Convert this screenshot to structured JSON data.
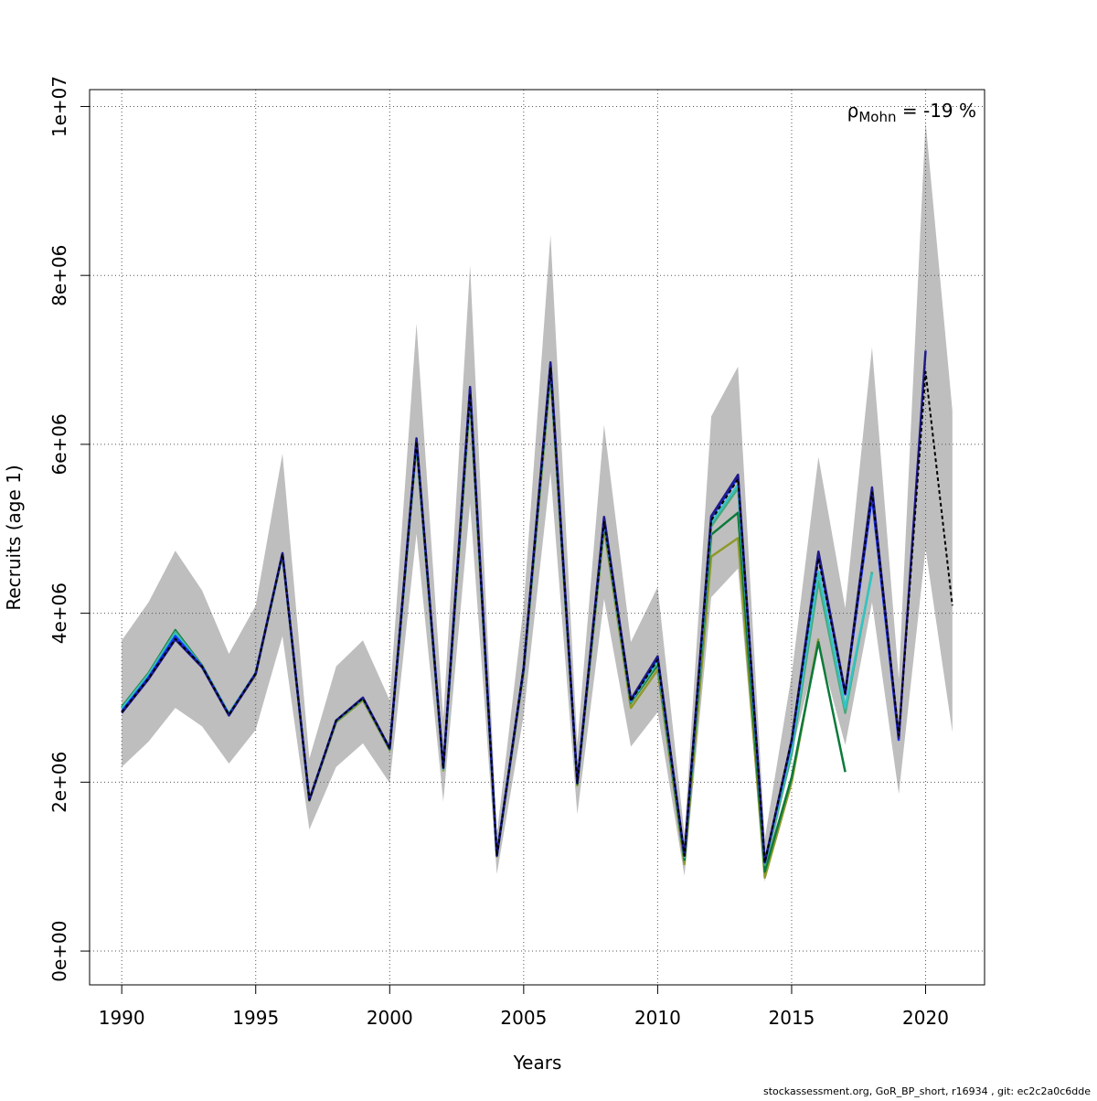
{
  "chart_data": {
    "type": "line",
    "title": "",
    "xlabel": "Years",
    "ylabel": "Recruits (age 1)",
    "xlim": [
      1988.8,
      2022.2
    ],
    "ylim": [
      -400000,
      10200000
    ],
    "x_ticks": [
      1990,
      1995,
      2000,
      2005,
      2010,
      2015,
      2020
    ],
    "x_tick_labels": [
      "1990",
      "1995",
      "2000",
      "2005",
      "2010",
      "2015",
      "2020"
    ],
    "y_ticks": [
      0,
      2000000,
      4000000,
      6000000,
      8000000,
      10000000
    ],
    "y_tick_labels": [
      "0e+00",
      "2e+06",
      "4e+06",
      "6e+06",
      "8e+06",
      "1e+07"
    ],
    "grid": true,
    "annotation": {
      "symbol": "ρ",
      "subscript": "Mohn",
      "text": " = -19 %"
    },
    "footer": "stockassessment.org, GoR_BP_short, r16934 , git: ec2c2a0c6dde",
    "confidence_band": {
      "color": "#bebebe",
      "x": [
        1990,
        1991,
        1992,
        1993,
        1994,
        1995,
        1996,
        1997,
        1998,
        1999,
        2000,
        2001,
        2002,
        2003,
        2004,
        2005,
        2006,
        2007,
        2008,
        2009,
        2010,
        2011,
        2012,
        2013,
        2014,
        2015,
        2016,
        2017,
        2018,
        2019,
        2020,
        2021
      ],
      "upper": [
        3680000,
        4130000,
        4740000,
        4270000,
        3520000,
        4090000,
        5890000,
        2280000,
        3370000,
        3680000,
        2970000,
        7430000,
        2750000,
        8120000,
        1380000,
        4080000,
        8480000,
        2450000,
        6230000,
        3660000,
        4310000,
        1380000,
        6330000,
        6920000,
        1330000,
        3270000,
        5850000,
        4060000,
        7150000,
        3220000,
        9820000,
        6400000
      ],
      "lower": [
        2180000,
        2480000,
        2880000,
        2660000,
        2220000,
        2620000,
        3730000,
        1440000,
        2180000,
        2460000,
        1990000,
        4940000,
        1770000,
        5300000,
        910000,
        2790000,
        5670000,
        1620000,
        4170000,
        2420000,
        2830000,
        890000,
        4190000,
        4530000,
        820000,
        2350000,
        3620000,
        2440000,
        4130000,
        1860000,
        4760000,
        2590000
      ]
    },
    "series": [
      {
        "color": "#000000",
        "dashed": true,
        "x": [
          1990,
          1991,
          1992,
          1993,
          1994,
          1995,
          1996,
          1997,
          1998,
          1999,
          2000,
          2001,
          2002,
          2003,
          2004,
          2005,
          2006,
          2007,
          2008,
          2009,
          2010,
          2011,
          2012,
          2013,
          2014,
          2015,
          2016,
          2017,
          2018,
          2019,
          2020,
          2021
        ],
        "values": [
          2830000,
          3230000,
          3700000,
          3370000,
          2800000,
          3290000,
          4700000,
          1790000,
          2730000,
          2990000,
          2400000,
          6030000,
          2160000,
          6600000,
          1130000,
          3350000,
          6900000,
          1990000,
          5080000,
          2960000,
          3450000,
          1130000,
          5100000,
          5590000,
          1050000,
          2500000,
          4650000,
          3050000,
          5430000,
          2550000,
          6860000,
          4090000
        ]
      },
      {
        "color": "#1f1a8a",
        "x": [
          1990,
          1991,
          1992,
          1993,
          1994,
          1995,
          1996,
          1997,
          1998,
          1999,
          2000,
          2001,
          2002,
          2003,
          2004,
          2005,
          2006,
          2007,
          2008,
          2009,
          2010,
          2011,
          2012,
          2013,
          2014,
          2015,
          2016,
          2017,
          2018,
          2019,
          2020
        ],
        "values": [
          2820000,
          3220000,
          3690000,
          3360000,
          2790000,
          3280000,
          4710000,
          1790000,
          2730000,
          3000000,
          2400000,
          6070000,
          2170000,
          6680000,
          1130000,
          3350000,
          6970000,
          1990000,
          5140000,
          2980000,
          3490000,
          1130000,
          5150000,
          5640000,
          1050000,
          2500000,
          4730000,
          3060000,
          5490000,
          2520000,
          7110000
        ]
      },
      {
        "color": "#1535ff",
        "x": [
          1990,
          1991,
          1992,
          1993,
          1994,
          1995,
          1996,
          1997,
          1998,
          1999,
          2000,
          2001,
          2002,
          2003,
          2004,
          2005,
          2006,
          2007,
          2008,
          2009,
          2010,
          2011,
          2012,
          2013,
          2014,
          2015,
          2016,
          2017,
          2018,
          2019
        ],
        "values": [
          2840000,
          3240000,
          3730000,
          3370000,
          2800000,
          3290000,
          4710000,
          1790000,
          2730000,
          3000000,
          2400000,
          6050000,
          2170000,
          6660000,
          1130000,
          3350000,
          6950000,
          1990000,
          5130000,
          2970000,
          3470000,
          1130000,
          5130000,
          5610000,
          1050000,
          2480000,
          4690000,
          3040000,
          5380000,
          2490000
        ]
      },
      {
        "color": "#33c4c4",
        "x": [
          1990,
          1991,
          1992,
          1993,
          1994,
          1995,
          1996,
          1997,
          1998,
          1999,
          2000,
          2001,
          2002,
          2003,
          2004,
          2005,
          2006,
          2007,
          2008,
          2009,
          2010,
          2011,
          2012,
          2013,
          2014,
          2015,
          2016,
          2017,
          2018
        ],
        "values": [
          2870000,
          3270000,
          3760000,
          3370000,
          2810000,
          3290000,
          4700000,
          1790000,
          2730000,
          2990000,
          2400000,
          6030000,
          2160000,
          6620000,
          1130000,
          3340000,
          6910000,
          1990000,
          5100000,
          2960000,
          3440000,
          1120000,
          5070000,
          5520000,
          1040000,
          2400000,
          4490000,
          2880000,
          4470000
        ]
      },
      {
        "color": "#4aa87a",
        "x": [
          1990,
          1991,
          1992,
          1993,
          1994,
          1995,
          1996,
          1997,
          1998,
          1999,
          2000,
          2001,
          2002,
          2003,
          2004,
          2005,
          2006,
          2007,
          2008,
          2009,
          2010,
          2011,
          2012,
          2013,
          2014,
          2015,
          2016,
          2017,
          2018
        ],
        "values": [
          2880000,
          3280000,
          3780000,
          3370000,
          2810000,
          3290000,
          4700000,
          1790000,
          2720000,
          2990000,
          2400000,
          6020000,
          2160000,
          6600000,
          1130000,
          3340000,
          6890000,
          1990000,
          5080000,
          2950000,
          3420000,
          1110000,
          5030000,
          5480000,
          1020000,
          2330000,
          4380000,
          2820000,
          4490000
        ]
      },
      {
        "color": "#0b7a3a",
        "x": [
          1990,
          1991,
          1992,
          1993,
          1994,
          1995,
          1996,
          1997,
          1998,
          1999,
          2000,
          2001,
          2002,
          2003,
          2004,
          2005,
          2006,
          2007,
          2008,
          2009,
          2010,
          2011,
          2012,
          2013,
          2014,
          2015,
          2016,
          2017
        ],
        "values": [
          2890000,
          3290000,
          3800000,
          3380000,
          2810000,
          3290000,
          4700000,
          1790000,
          2720000,
          2990000,
          2390000,
          6010000,
          2160000,
          6590000,
          1130000,
          3330000,
          6880000,
          1980000,
          5060000,
          2940000,
          3390000,
          1080000,
          4930000,
          5190000,
          940000,
          2060000,
          3660000,
          2120000
        ]
      },
      {
        "color": "#8f9a2a",
        "x": [
          1990,
          1991,
          1992,
          1993,
          1994,
          1995,
          1996,
          1997,
          1998,
          1999,
          2000,
          2001,
          2002,
          2003,
          2004,
          2005,
          2006,
          2007,
          2008,
          2009,
          2010,
          2011,
          2012,
          2013,
          2014,
          2015,
          2016
        ],
        "values": [
          2870000,
          3270000,
          3760000,
          3360000,
          2800000,
          3270000,
          4690000,
          1780000,
          2710000,
          2970000,
          2380000,
          5990000,
          2140000,
          6530000,
          1120000,
          3300000,
          6820000,
          1960000,
          5010000,
          2880000,
          3330000,
          1030000,
          4670000,
          4890000,
          870000,
          2000000,
          3700000
        ]
      }
    ]
  }
}
